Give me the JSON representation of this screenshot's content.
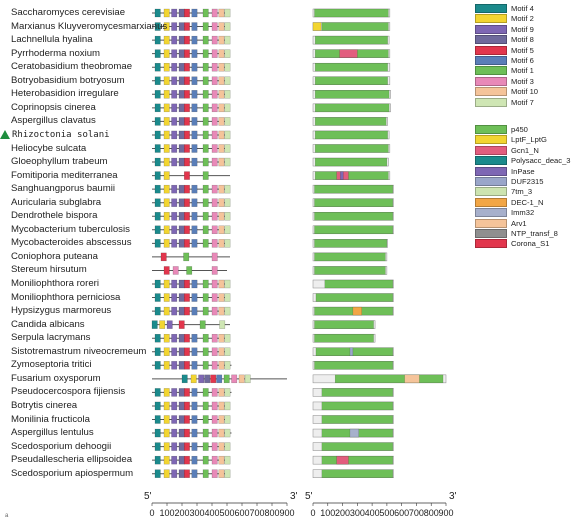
{
  "species": [
    "Saccharomyces cerevisiae",
    "Marxianus Kluyveromycesmarxianus",
    "Lachnellula hyalina",
    "Pyrrhoderma noxium",
    "Ceratobasidium theobromae",
    "Botryobasidium botryosum",
    "Heterobasidion irregulare",
    "Coprinopsis cinerea",
    "Aspergillus clavatus",
    "Rhizoctonia solani",
    "Heliocybe sulcata",
    "Gloeophyllum trabeum",
    "Fomitiporia mediterranea",
    "Sanghuangporus baumii",
    "Auricularia subglabra",
    "Dendrothele bispora",
    "Mycobacterium tuberculosis",
    "Mycobacteroides abscessus",
    "Coniophora puteana",
    "Stereum hirsutum",
    "Moniliophthora roreri",
    "Moniliophthora perniciosa",
    "Hypsizygus marmoreus",
    "Candida albicans",
    "Serpula lacrymans",
    "Sistotremastrum niveocremeum",
    "Zymoseptoria tritici",
    "Fusarium oxysporum",
    "Pseudocercospora fijiensis",
    "Botrytis cinerea",
    "Monilinia fructicola",
    "Aspergillus lentulus",
    "Scedosporium dehoogii",
    "Pseudallescheria ellipsoidea",
    "Scedosporium apiospermum"
  ],
  "highlighted_species": "Rhizoctonia solani",
  "motif_legend": [
    {
      "label": "Motif 4",
      "color": "#1b8a8c"
    },
    {
      "label": "Motif 2",
      "color": "#f2d531"
    },
    {
      "label": "Motif 9",
      "color": "#7e67b4"
    },
    {
      "label": "Motif 8",
      "color": "#6f6a9c"
    },
    {
      "label": "Motif 5",
      "color": "#e2364d"
    },
    {
      "label": "Motif 6",
      "color": "#5a7eb8"
    },
    {
      "label": "Motif 1",
      "color": "#6ebf58"
    },
    {
      "label": "Motif 3",
      "color": "#e889b8"
    },
    {
      "label": "Motif 10",
      "color": "#f5c49a"
    },
    {
      "label": "Motif 7",
      "color": "#cfe6b4"
    }
  ],
  "domain_legend": [
    {
      "label": "p450",
      "color": "#6ebf58"
    },
    {
      "label": "LptF_LptG",
      "color": "#f2d531"
    },
    {
      "label": "Gcn1_N",
      "color": "#e25d7e"
    },
    {
      "label": "Polysacc_deac_3",
      "color": "#1b8a8c"
    },
    {
      "label": "InPase",
      "color": "#7e67b4"
    },
    {
      "label": "DUF2315",
      "color": "#9aa6c9"
    },
    {
      "label": "7tm_3",
      "color": "#cde4b0"
    },
    {
      "label": "DEC-1_N",
      "color": "#f2a646"
    },
    {
      "label": "Imm32",
      "color": "#a7b0cc"
    },
    {
      "label": "Arv1",
      "color": "#f5c49a"
    },
    {
      "label": "NTP_transf_8",
      "color": "#8f8f8f"
    },
    {
      "label": "Corona_S1",
      "color": "#e2364d"
    }
  ],
  "motif_panel": {
    "prime5": "5'",
    "prime3": "3'",
    "tick_labels": [
      "0",
      "100",
      "200",
      "300",
      "400",
      "500",
      "600",
      "700",
      "800",
      "900"
    ],
    "xlim": [
      0,
      900
    ],
    "lengths": [
      520,
      520,
      510,
      520,
      515,
      515,
      515,
      520,
      500,
      510,
      520,
      510,
      520,
      510,
      520,
      520,
      520,
      500,
      520,
      500,
      520,
      520,
      510,
      520,
      520,
      520,
      530,
      900,
      530,
      520,
      515,
      530,
      510,
      520,
      520
    ],
    "motif_order": [
      "Motif 4",
      "Motif 2",
      "Motif 9",
      "Motif 8",
      "Motif 5",
      "Motif 6",
      "Motif 1",
      "Motif 3",
      "Motif 10",
      "Motif 7"
    ],
    "default_motif_starts": [
      20,
      80,
      130,
      180,
      215,
      265,
      340,
      400,
      445,
      485
    ],
    "motif_width": 36,
    "special_rows": {
      "Fomitiporia mediterranea": {
        "motifs": [
          [
            "Motif 4",
            20
          ],
          [
            "Motif 2",
            80
          ],
          [
            "Motif 5",
            215
          ],
          [
            "Motif 1",
            340
          ]
        ]
      },
      "Coniophora puteana": {
        "motifs": [
          [
            "Motif 5",
            60
          ],
          [
            "Motif 1",
            210
          ],
          [
            "Motif 3",
            400
          ]
        ]
      },
      "Stereum hirsutum": {
        "motifs": [
          [
            "Motif 5",
            80
          ],
          [
            "Motif 3",
            140
          ],
          [
            "Motif 1",
            230
          ],
          [
            "Motif 3",
            400
          ]
        ]
      },
      "Candida albicans": {
        "motifs": [
          [
            "Motif 4",
            0
          ],
          [
            "Motif 2",
            50
          ],
          [
            "Motif 9",
            100
          ],
          [
            "Motif 5",
            180
          ],
          [
            "Motif 1",
            320
          ],
          [
            "Motif 7",
            450
          ]
        ]
      },
      "Fusarium oxysporum": {
        "motifs": [
          [
            "Motif 4",
            200
          ],
          [
            "Motif 2",
            260
          ],
          [
            "Motif 9",
            310
          ],
          [
            "Motif 8",
            350
          ],
          [
            "Motif 5",
            390
          ],
          [
            "Motif 6",
            430
          ],
          [
            "Motif 1",
            480
          ],
          [
            "Motif 3",
            530
          ],
          [
            "Motif 10",
            580
          ],
          [
            "Motif 7",
            620
          ]
        ]
      }
    }
  },
  "domain_panel": {
    "prime5": "5'",
    "prime3": "3'",
    "tick_labels": [
      "0",
      "100",
      "200",
      "300",
      "400",
      "500",
      "600",
      "700",
      "800",
      "900"
    ],
    "xlim": [
      0,
      900
    ],
    "rows": [
      {
        "len": 520,
        "start": 10,
        "end": 510,
        "extra": []
      },
      {
        "len": 520,
        "start": 60,
        "end": 510,
        "extra": [
          [
            "LptF_LptG",
            0,
            55
          ]
        ]
      },
      {
        "len": 515,
        "start": 15,
        "end": 505,
        "extra": []
      },
      {
        "len": 520,
        "start": 15,
        "end": 510,
        "extra": [
          [
            "Gcn1_N",
            180,
            300
          ]
        ]
      },
      {
        "len": 520,
        "start": 15,
        "end": 505,
        "extra": []
      },
      {
        "len": 520,
        "start": 15,
        "end": 505,
        "extra": []
      },
      {
        "len": 525,
        "start": 15,
        "end": 515,
        "extra": []
      },
      {
        "len": 525,
        "start": 15,
        "end": 515,
        "extra": []
      },
      {
        "len": 505,
        "start": 15,
        "end": 495,
        "extra": []
      },
      {
        "len": 515,
        "start": 15,
        "end": 505,
        "extra": []
      },
      {
        "len": 520,
        "start": 15,
        "end": 510,
        "extra": []
      },
      {
        "len": 510,
        "start": 15,
        "end": 500,
        "extra": []
      },
      {
        "len": 520,
        "start": 15,
        "end": 510,
        "extra": [
          [
            "Gcn1_N",
            160,
            240
          ],
          [
            "InPase",
            185,
            205
          ]
        ]
      },
      {
        "len": 545,
        "start": 10,
        "end": 540,
        "extra": []
      },
      {
        "len": 545,
        "start": 10,
        "end": 540,
        "extra": []
      },
      {
        "len": 545,
        "start": 10,
        "end": 540,
        "extra": []
      },
      {
        "len": 545,
        "start": 10,
        "end": 540,
        "extra": []
      },
      {
        "len": 505,
        "start": 10,
        "end": 500,
        "extra": []
      },
      {
        "len": 500,
        "start": 10,
        "end": 490,
        "extra": []
      },
      {
        "len": 500,
        "start": 10,
        "end": 490,
        "extra": []
      },
      {
        "len": 545,
        "start": 80,
        "end": 540,
        "extra": []
      },
      {
        "len": 545,
        "start": 20,
        "end": 540,
        "extra": []
      },
      {
        "len": 545,
        "start": 10,
        "end": 540,
        "extra": [
          [
            "DEC-1_N",
            270,
            330
          ]
        ]
      },
      {
        "len": 420,
        "start": 10,
        "end": 410,
        "extra": []
      },
      {
        "len": 420,
        "start": 10,
        "end": 410,
        "extra": []
      },
      {
        "len": 545,
        "start": 20,
        "end": 540,
        "extra": [
          [
            "DUF2315",
            250,
            270
          ]
        ]
      },
      {
        "len": 545,
        "start": 10,
        "end": 540,
        "extra": []
      },
      {
        "len": 900,
        "start": 150,
        "end": 880,
        "extra": [
          [
            "Arv1",
            620,
            720
          ]
        ]
      },
      {
        "len": 545,
        "start": 60,
        "end": 540,
        "extra": []
      },
      {
        "len": 545,
        "start": 60,
        "end": 540,
        "extra": []
      },
      {
        "len": 545,
        "start": 60,
        "end": 540,
        "extra": []
      },
      {
        "len": 545,
        "start": 60,
        "end": 540,
        "extra": [
          [
            "Imm32",
            250,
            310
          ]
        ]
      },
      {
        "len": 545,
        "start": 60,
        "end": 540,
        "extra": []
      },
      {
        "len": 545,
        "start": 60,
        "end": 540,
        "extra": [
          [
            "Gcn1_N",
            160,
            240
          ]
        ]
      },
      {
        "len": 545,
        "start": 60,
        "end": 540,
        "extra": []
      }
    ]
  },
  "corner_mark": "a"
}
